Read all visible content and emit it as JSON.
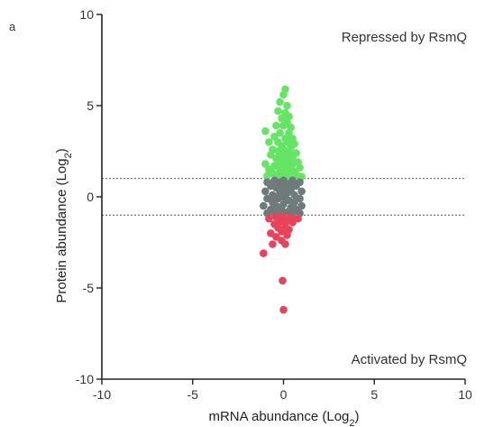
{
  "chart_data": {
    "type": "scatter",
    "panel_label": "a",
    "xlabel_main": "mRNA abundance (Log",
    "xlabel_sub": "2",
    "xlabel_end": ")",
    "ylabel_main": "Protein abundance (Log",
    "ylabel_sub": "2",
    "ylabel_end": ")",
    "xlim": [
      -10,
      10
    ],
    "ylim": [
      -10,
      10
    ],
    "xticks": [
      "-10",
      "-5",
      "0",
      "5",
      "10"
    ],
    "yticks": [
      "10",
      "5",
      "0",
      "-5",
      "-10"
    ],
    "grid": false,
    "thresholds": [
      1,
      -1
    ],
    "annotations": {
      "top": "Repressed by RsmQ",
      "bottom": "Activated by RsmQ"
    },
    "colors": {
      "repressed": "#66e466",
      "unchanged": "#6f7b7b",
      "activated": "#e8435a",
      "threshold": "#555555",
      "axis": "#222222"
    },
    "series": [
      {
        "group": "repressed",
        "points": [
          [
            0.1,
            5.9
          ],
          [
            0.0,
            5.6
          ],
          [
            -0.2,
            5.2
          ],
          [
            0.2,
            5.0
          ],
          [
            -0.3,
            4.7
          ],
          [
            0.1,
            4.6
          ],
          [
            0.3,
            4.4
          ],
          [
            -0.1,
            4.3
          ],
          [
            0.2,
            4.1
          ],
          [
            -0.4,
            3.9
          ],
          [
            0.4,
            3.8
          ],
          [
            0.0,
            3.9
          ],
          [
            -1.0,
            3.6
          ],
          [
            -0.2,
            3.5
          ],
          [
            0.3,
            3.5
          ],
          [
            -0.5,
            3.3
          ],
          [
            0.5,
            3.2
          ],
          [
            0.1,
            3.2
          ],
          [
            -0.3,
            3.0
          ],
          [
            0.2,
            3.0
          ],
          [
            -0.8,
            3.0
          ],
          [
            0.6,
            2.9
          ],
          [
            -0.1,
            2.8
          ],
          [
            0.4,
            2.7
          ],
          [
            -0.6,
            2.6
          ],
          [
            0.0,
            2.6
          ],
          [
            -0.3,
            2.5
          ],
          [
            0.3,
            2.4
          ],
          [
            0.7,
            2.4
          ],
          [
            -0.7,
            2.3
          ],
          [
            -0.1,
            2.3
          ],
          [
            0.5,
            2.2
          ],
          [
            -0.4,
            2.1
          ],
          [
            0.1,
            2.1
          ],
          [
            0.2,
            2.0
          ],
          [
            -0.2,
            1.9
          ],
          [
            0.8,
            1.9
          ],
          [
            -1.0,
            1.8
          ],
          [
            0.5,
            1.8
          ],
          [
            0.0,
            1.8
          ],
          [
            -0.5,
            1.7
          ],
          [
            0.3,
            1.6
          ],
          [
            0.9,
            1.6
          ],
          [
            -0.8,
            1.5
          ],
          [
            -0.2,
            1.5
          ],
          [
            0.6,
            1.4
          ],
          [
            0.1,
            1.4
          ],
          [
            -0.6,
            1.3
          ],
          [
            0.3,
            1.3
          ],
          [
            -0.3,
            1.2
          ],
          [
            0.7,
            1.2
          ],
          [
            0.0,
            1.2
          ],
          [
            -0.9,
            1.15
          ],
          [
            0.4,
            1.1
          ],
          [
            -0.1,
            1.1
          ],
          [
            1.0,
            1.1
          ],
          [
            0.2,
            1.05
          ],
          [
            -0.4,
            1.05
          ]
        ]
      },
      {
        "group": "unchanged",
        "points": [
          [
            0.0,
            0.9
          ],
          [
            -0.5,
            0.9
          ],
          [
            0.5,
            0.9
          ],
          [
            -0.9,
            0.8
          ],
          [
            0.9,
            0.8
          ],
          [
            -0.2,
            0.8
          ],
          [
            0.3,
            0.7
          ],
          [
            -0.7,
            0.6
          ],
          [
            0.7,
            0.6
          ],
          [
            0.0,
            0.5
          ],
          [
            -0.4,
            0.5
          ],
          [
            0.4,
            0.4
          ],
          [
            -1.0,
            0.3
          ],
          [
            1.0,
            0.3
          ],
          [
            -0.2,
            0.2
          ],
          [
            0.2,
            0.2
          ],
          [
            -0.6,
            0.1
          ],
          [
            0.6,
            0.1
          ],
          [
            0.0,
            0.0
          ],
          [
            -0.9,
            -0.1
          ],
          [
            0.9,
            -0.1
          ],
          [
            -0.3,
            -0.1
          ],
          [
            0.3,
            -0.2
          ],
          [
            -0.6,
            -0.3
          ],
          [
            0.6,
            -0.3
          ],
          [
            0.0,
            -0.4
          ],
          [
            -1.1,
            -0.5
          ],
          [
            1.0,
            -0.5
          ],
          [
            -0.4,
            -0.5
          ],
          [
            0.4,
            -0.6
          ],
          [
            -0.7,
            -0.7
          ],
          [
            0.7,
            -0.7
          ],
          [
            -0.1,
            -0.7
          ],
          [
            -0.3,
            -0.8
          ],
          [
            0.3,
            -0.8
          ],
          [
            -0.9,
            -0.9
          ],
          [
            0.9,
            -0.9
          ],
          [
            0.0,
            -0.9
          ],
          [
            -0.5,
            -0.9
          ],
          [
            0.5,
            -0.9
          ]
        ]
      },
      {
        "group": "activated",
        "points": [
          [
            0.0,
            -1.1
          ],
          [
            -0.4,
            -1.1
          ],
          [
            0.4,
            -1.15
          ],
          [
            0.8,
            -1.2
          ],
          [
            -0.8,
            -1.2
          ],
          [
            0.2,
            -1.3
          ],
          [
            -0.2,
            -1.35
          ],
          [
            0.5,
            -1.4
          ],
          [
            -0.5,
            -1.5
          ],
          [
            0.1,
            -1.6
          ],
          [
            -0.3,
            -1.7
          ],
          [
            0.3,
            -1.8
          ],
          [
            -0.1,
            -1.9
          ],
          [
            -0.7,
            -2.0
          ],
          [
            0.2,
            -2.1
          ],
          [
            -0.4,
            -2.2
          ],
          [
            -0.1,
            -2.4
          ],
          [
            0.1,
            -2.6
          ],
          [
            -0.6,
            -2.6
          ],
          [
            -1.1,
            -3.1
          ],
          [
            -0.05,
            -4.6
          ],
          [
            0.0,
            -6.2
          ]
        ]
      }
    ]
  }
}
